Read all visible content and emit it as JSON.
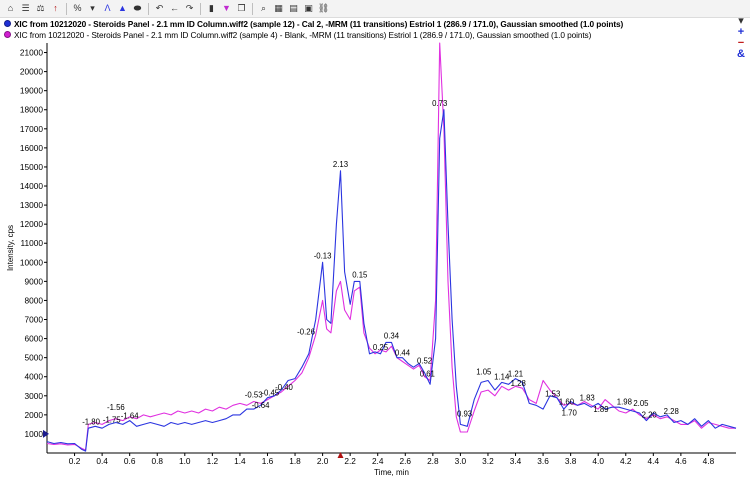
{
  "toolbar": {
    "buttons": [
      {
        "name": "home-icon",
        "glyph": "⌂"
      },
      {
        "name": "list-icon",
        "glyph": "☰"
      },
      {
        "name": "scale-icon",
        "glyph": "⚖"
      },
      {
        "name": "arrow-up-icon",
        "glyph": "↑"
      },
      {
        "name": "percent-icon",
        "glyph": "%"
      },
      {
        "name": "chevron-down-icon",
        "glyph": "▾"
      },
      {
        "name": "peak-label-icon",
        "glyph": "Λ"
      },
      {
        "name": "area-icon",
        "glyph": "▲"
      },
      {
        "name": "pill-icon",
        "glyph": "⬬"
      },
      {
        "name": "undo-icon",
        "glyph": "↶"
      },
      {
        "name": "back-icon",
        "glyph": "←"
      },
      {
        "name": "redo-icon",
        "glyph": "↷"
      },
      {
        "name": "bar-icon",
        "glyph": "▮"
      },
      {
        "name": "marker-icon",
        "glyph": "▼"
      },
      {
        "name": "copy-icon",
        "glyph": "❐"
      },
      {
        "name": "zoom-icon",
        "glyph": "⌕"
      },
      {
        "name": "grid-icon",
        "glyph": "▦"
      },
      {
        "name": "table-icon",
        "glyph": "▤"
      },
      {
        "name": "window-icon",
        "glyph": "▣"
      },
      {
        "name": "link-icon",
        "glyph": "⛓"
      }
    ]
  },
  "legend": [
    {
      "text": "XIC from 10212020 - Steroids Panel - 2.1 mm ID Column.wiff2 (sample 12) - Cal 2, -MRM (11 transitions) Estriol 1 (286.9 / 171.0), Gaussian smoothed (1.0 points)",
      "color": "#1f2fd6",
      "bold": true
    },
    {
      "text": "XIC from 10212020 - Steroids Panel - 2.1 mm ID Column.wiff2 (sample 4) - Blank, -MRM (11 transitions) Estriol 1 (286.9 / 171.0), Gaussian smoothed (1.0 points)",
      "color": "#d21fd2",
      "bold": false
    }
  ],
  "side_icons": [
    {
      "name": "chevron-down-icon",
      "glyph": "▾",
      "color": "#333333"
    },
    {
      "name": "add-icon",
      "glyph": "+",
      "color": "#1f2fd6"
    },
    {
      "name": "remove-icon",
      "glyph": "−",
      "color": "#c01818"
    },
    {
      "name": "link-traces-icon",
      "glyph": "&",
      "color": "#1f2fd6"
    }
  ],
  "chart_data": {
    "type": "line",
    "xlabel": "Time, min",
    "ylabel": "Intensity, cps",
    "xlim": [
      0,
      5.0
    ],
    "ylim": [
      0,
      21500
    ],
    "xticks": [
      "0.2",
      "0.4",
      "0.6",
      "0.8",
      "1.0",
      "1.2",
      "1.4",
      "1.6",
      "1.8",
      "2.0",
      "2.2",
      "2.4",
      "2.6",
      "2.8",
      "3.0",
      "3.2",
      "3.4",
      "3.6",
      "3.8",
      "4.0",
      "4.2",
      "4.4",
      "4.6",
      "4.8"
    ],
    "yticks": [
      "1000",
      "2000",
      "3000",
      "4000",
      "5000",
      "6000",
      "7000",
      "8000",
      "9000",
      "10000",
      "11000",
      "12000",
      "13000",
      "14000",
      "15000",
      "16000",
      "17000",
      "18000",
      "19000",
      "20000",
      "21000"
    ],
    "grid": false,
    "series": [
      {
        "color": "#2b35e0",
        "x": [
          0.0,
          0.05,
          0.1,
          0.15,
          0.2,
          0.25,
          0.28,
          0.3,
          0.35,
          0.4,
          0.45,
          0.5,
          0.55,
          0.6,
          0.65,
          0.7,
          0.75,
          0.8,
          0.85,
          0.9,
          0.95,
          1.0,
          1.05,
          1.1,
          1.15,
          1.2,
          1.25,
          1.3,
          1.35,
          1.4,
          1.45,
          1.5,
          1.55,
          1.6,
          1.65,
          1.7,
          1.75,
          1.8,
          1.85,
          1.9,
          1.95,
          2.0,
          2.03,
          2.06,
          2.1,
          2.13,
          2.16,
          2.2,
          2.23,
          2.27,
          2.3,
          2.34,
          2.38,
          2.42,
          2.46,
          2.5,
          2.54,
          2.58,
          2.62,
          2.66,
          2.7,
          2.74,
          2.78,
          2.82,
          2.85,
          2.88,
          2.91,
          2.94,
          2.97,
          3.0,
          3.05,
          3.1,
          3.15,
          3.2,
          3.25,
          3.3,
          3.35,
          3.4,
          3.45,
          3.5,
          3.55,
          3.6,
          3.65,
          3.7,
          3.75,
          3.8,
          3.85,
          3.9,
          3.95,
          4.0,
          4.05,
          4.1,
          4.15,
          4.2,
          4.25,
          4.3,
          4.35,
          4.4,
          4.45,
          4.5,
          4.55,
          4.6,
          4.65,
          4.7,
          4.75,
          4.8,
          4.85,
          4.9,
          4.95,
          5.0
        ],
        "values": [
          600,
          500,
          550,
          480,
          500,
          200,
          100,
          1300,
          1400,
          1300,
          1500,
          1600,
          1500,
          1700,
          1400,
          1500,
          1600,
          1500,
          1400,
          1600,
          1500,
          1600,
          1500,
          1600,
          1700,
          1600,
          1700,
          1800,
          2000,
          2000,
          2300,
          2300,
          2500,
          2900,
          3000,
          3300,
          3800,
          3900,
          4500,
          5200,
          7000,
          10000,
          7000,
          6800,
          12000,
          14800,
          9500,
          7800,
          9000,
          9000,
          6800,
          5200,
          5300,
          5200,
          5800,
          5800,
          5000,
          5000,
          4700,
          4500,
          4700,
          4200,
          3600,
          6000,
          16500,
          18000,
          12000,
          7000,
          3500,
          1500,
          1400,
          2800,
          3700,
          3800,
          3300,
          3700,
          3600,
          3900,
          3700,
          2600,
          2500,
          2300,
          3000,
          2900,
          2300,
          2700,
          2500,
          2600,
          2400,
          2600,
          2300,
          2400,
          2400,
          2300,
          2200,
          2100,
          1700,
          2100,
          1900,
          2000,
          1600,
          1700,
          1500,
          1800,
          1400,
          1700,
          1300,
          1500,
          1400,
          1300
        ]
      },
      {
        "color": "#e030e0",
        "x": [
          0.0,
          0.05,
          0.1,
          0.15,
          0.2,
          0.25,
          0.28,
          0.3,
          0.35,
          0.4,
          0.45,
          0.5,
          0.55,
          0.6,
          0.65,
          0.7,
          0.75,
          0.8,
          0.85,
          0.9,
          0.95,
          1.0,
          1.05,
          1.1,
          1.15,
          1.2,
          1.25,
          1.3,
          1.35,
          1.4,
          1.45,
          1.5,
          1.55,
          1.6,
          1.65,
          1.7,
          1.75,
          1.8,
          1.85,
          1.9,
          1.95,
          2.0,
          2.03,
          2.06,
          2.1,
          2.13,
          2.16,
          2.2,
          2.23,
          2.27,
          2.3,
          2.34,
          2.38,
          2.42,
          2.46,
          2.5,
          2.54,
          2.58,
          2.62,
          2.66,
          2.7,
          2.74,
          2.78,
          2.82,
          2.85,
          2.88,
          2.91,
          2.94,
          2.97,
          3.0,
          3.05,
          3.1,
          3.15,
          3.2,
          3.25,
          3.3,
          3.35,
          3.4,
          3.45,
          3.5,
          3.55,
          3.6,
          3.65,
          3.7,
          3.75,
          3.8,
          3.85,
          3.9,
          3.95,
          4.0,
          4.05,
          4.1,
          4.15,
          4.2,
          4.25,
          4.3,
          4.35,
          4.4,
          4.45,
          4.5,
          4.55,
          4.6,
          4.65,
          4.7,
          4.75,
          4.8,
          4.85,
          4.9,
          4.95,
          5.0
        ],
        "values": [
          500,
          450,
          480,
          420,
          450,
          250,
          150,
          1500,
          1600,
          1500,
          1700,
          1800,
          1700,
          1900,
          1800,
          2000,
          1900,
          2000,
          2100,
          2000,
          2200,
          2100,
          2200,
          2100,
          2300,
          2200,
          2400,
          2300,
          2500,
          2600,
          2500,
          2700,
          2600,
          2800,
          3000,
          3200,
          3500,
          3800,
          4200,
          5000,
          6200,
          8000,
          6500,
          6300,
          8500,
          9000,
          7500,
          7000,
          8500,
          8700,
          6300,
          5500,
          5200,
          5400,
          5300,
          5600,
          5000,
          4800,
          4600,
          4400,
          4600,
          4000,
          3800,
          8000,
          21500,
          17000,
          9000,
          4500,
          1900,
          1100,
          1100,
          2200,
          3200,
          3300,
          3000,
          3500,
          3300,
          3500,
          3400,
          2800,
          2600,
          3800,
          3300,
          2900,
          2500,
          2600,
          2500,
          2700,
          2500,
          2300,
          2800,
          2500,
          2200,
          2100,
          2300,
          2000,
          1800,
          2000,
          1800,
          1900,
          1700,
          1500,
          1500,
          1700,
          1300,
          1600,
          1500,
          1400,
          1300,
          1300
        ]
      }
    ],
    "annotations": [
      {
        "label": "0.73",
        "x": 2.85,
        "y": 18100
      },
      {
        "label": "2.13",
        "x": 2.13,
        "y": 14900
      },
      {
        "label": "-0.13",
        "x": 2.0,
        "y": 10100
      },
      {
        "label": "0.15",
        "x": 2.27,
        "y": 9100
      },
      {
        "label": "-0.26",
        "x": 1.88,
        "y": 6100
      },
      {
        "label": "0.34",
        "x": 2.5,
        "y": 5900
      },
      {
        "label": "0.25",
        "x": 2.42,
        "y": 5300
      },
      {
        "label": "0.44",
        "x": 2.58,
        "y": 5000
      },
      {
        "label": "0.52",
        "x": 2.74,
        "y": 4600
      },
      {
        "label": "0.61",
        "x": 2.76,
        "y": 3900
      },
      {
        "label": "-0.40",
        "x": 1.72,
        "y": 3200
      },
      {
        "label": "-0.45",
        "x": 1.62,
        "y": 2900
      },
      {
        "label": "-0.53",
        "x": 1.5,
        "y": 2800
      },
      {
        "label": "-0.64",
        "x": 1.55,
        "y": 2250
      },
      {
        "label": "-1.56",
        "x": 0.5,
        "y": 2150
      },
      {
        "label": "-1.64",
        "x": 0.6,
        "y": 1700
      },
      {
        "label": "-1.75",
        "x": 0.47,
        "y": 1500
      },
      {
        "label": "-1.80",
        "x": 0.32,
        "y": 1400
      },
      {
        "label": "0.93",
        "x": 3.03,
        "y": 1800
      },
      {
        "label": "1.05",
        "x": 3.17,
        "y": 4000
      },
      {
        "label": "1.14",
        "x": 3.3,
        "y": 3750
      },
      {
        "label": "1.21",
        "x": 3.4,
        "y": 3900
      },
      {
        "label": "1.28",
        "x": 3.42,
        "y": 3400
      },
      {
        "label": "1.53",
        "x": 3.67,
        "y": 2850
      },
      {
        "label": "1.60",
        "x": 3.77,
        "y": 2450
      },
      {
        "label": "1.70",
        "x": 3.79,
        "y": 1850
      },
      {
        "label": "1.83",
        "x": 3.92,
        "y": 2650
      },
      {
        "label": "1.89",
        "x": 4.02,
        "y": 2050
      },
      {
        "label": "1.98",
        "x": 4.19,
        "y": 2450
      },
      {
        "label": "2.05",
        "x": 4.31,
        "y": 2350
      },
      {
        "label": "2.20",
        "x": 4.37,
        "y": 1750
      },
      {
        "label": "2.28",
        "x": 4.53,
        "y": 1950
      }
    ]
  }
}
